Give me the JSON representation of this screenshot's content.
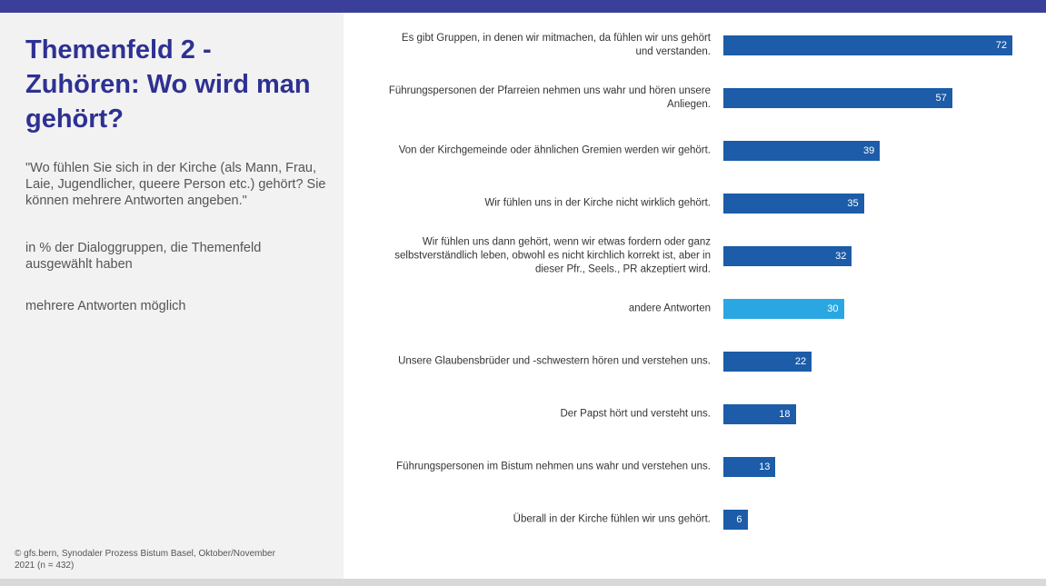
{
  "header": {
    "title": "Themenfeld 2 - Zuhören: Wo wird man gehört?",
    "question": "\"Wo fühlen Sie sich in der Kirche (als Mann, Frau, Laie, Jugendlicher, queere Person etc.) gehört? Sie können mehrere Antworten angeben.\"",
    "base": "in % der Dialoggruppen, die Themenfeld ausgewählt haben",
    "note": "mehrere Antworten möglich",
    "source": "© gfs.bern, Synodaler Prozess Bistum Basel, Oktober/November 2021 (n = 432)"
  },
  "chart_data": {
    "type": "hbar",
    "categories": [
      "Es gibt Gruppen, in denen wir mitmachen, da fühlen wir uns gehört und verstanden.",
      "Führungspersonen der Pfarreien nehmen uns wahr und hören unsere Anliegen.",
      "Von der Kirchgemeinde oder ähnlichen Gremien werden wir gehört.",
      "Wir fühlen uns in der Kirche nicht wirklich gehört.",
      "Wir fühlen uns dann gehört, wenn wir etwas fordern oder ganz selbstverständlich leben, obwohl es nicht kirchlich korrekt ist, aber in dieser Pfr., Seels., PR akzeptiert wird.",
      "andere Antworten",
      "Unsere Glaubensbrüder und -schwestern hören und verstehen uns.",
      "Der Papst hört und versteht uns.",
      "Führungspersonen im Bistum nehmen uns wahr und verstehen uns.",
      "Überall in der Kirche fühlen wir uns gehört."
    ],
    "values": [
      72,
      57,
      39,
      35,
      32,
      30,
      22,
      18,
      13,
      6
    ],
    "colors": [
      "#1c5ca8",
      "#1c5ca8",
      "#1c5ca8",
      "#1c5ca8",
      "#1c5ca8",
      "#2aa7e3",
      "#1c5ca8",
      "#1c5ca8",
      "#1c5ca8",
      "#1c5ca8"
    ]
  }
}
